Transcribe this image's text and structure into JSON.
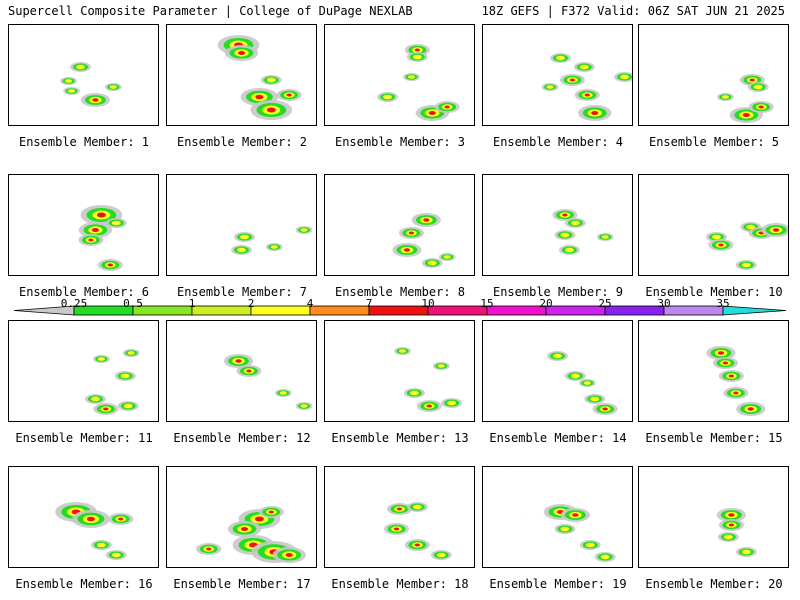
{
  "header": {
    "title": "Supercell Composite Parameter | College of DuPage NEXLAB",
    "run_info": "18Z GEFS | F372 Valid: 06Z SAT JUN 21 2025"
  },
  "colorbar": {
    "ticks": [
      "0.25",
      "0.5",
      "1",
      "2",
      "4",
      "7",
      "10",
      "15",
      "20",
      "25",
      "30",
      "35"
    ],
    "colors": [
      "#c8c8c8",
      "#22dd22",
      "#88e622",
      "#ccee22",
      "#ffff22",
      "#ff8c1a",
      "#ee1111",
      "#ee1177",
      "#ee11cc",
      "#cc22ee",
      "#8822ee",
      "#bb88ee",
      "#22dddd"
    ]
  },
  "members": [
    {
      "label": "Ensemble Member: 1",
      "blobs": [
        [
          0.48,
          0.42,
          0.05
        ],
        [
          0.4,
          0.56,
          0.04
        ],
        [
          0.42,
          0.66,
          0.04
        ],
        [
          0.58,
          0.75,
          0.07
        ],
        [
          0.7,
          0.62,
          0.04
        ]
      ]
    },
    {
      "label": "Ensemble Member: 2",
      "blobs": [
        [
          0.48,
          0.2,
          0.1
        ],
        [
          0.5,
          0.28,
          0.08
        ],
        [
          0.7,
          0.55,
          0.05
        ],
        [
          0.62,
          0.72,
          0.09
        ],
        [
          0.7,
          0.85,
          0.1
        ],
        [
          0.82,
          0.7,
          0.06
        ]
      ]
    },
    {
      "label": "Ensemble Member: 3",
      "blobs": [
        [
          0.62,
          0.25,
          0.06
        ],
        [
          0.62,
          0.32,
          0.05
        ],
        [
          0.58,
          0.52,
          0.04
        ],
        [
          0.42,
          0.72,
          0.05
        ],
        [
          0.72,
          0.88,
          0.08
        ],
        [
          0.82,
          0.82,
          0.06
        ]
      ]
    },
    {
      "label": "Ensemble Member: 4",
      "blobs": [
        [
          0.52,
          0.33,
          0.05
        ],
        [
          0.68,
          0.42,
          0.05
        ],
        [
          0.6,
          0.55,
          0.06
        ],
        [
          0.45,
          0.62,
          0.04
        ],
        [
          0.7,
          0.7,
          0.06
        ],
        [
          0.75,
          0.88,
          0.08
        ],
        [
          0.95,
          0.52,
          0.05
        ]
      ]
    },
    {
      "label": "Ensemble Member: 5",
      "blobs": [
        [
          0.76,
          0.55,
          0.06
        ],
        [
          0.8,
          0.62,
          0.05
        ],
        [
          0.58,
          0.72,
          0.04
        ],
        [
          0.72,
          0.9,
          0.08
        ],
        [
          0.82,
          0.82,
          0.06
        ]
      ]
    },
    {
      "label": "Ensemble Member: 6",
      "blobs": [
        [
          0.62,
          0.4,
          0.1
        ],
        [
          0.58,
          0.55,
          0.08
        ],
        [
          0.55,
          0.65,
          0.06
        ],
        [
          0.72,
          0.48,
          0.05
        ],
        [
          0.68,
          0.9,
          0.06
        ]
      ]
    },
    {
      "label": "Ensemble Member: 7",
      "blobs": [
        [
          0.52,
          0.62,
          0.05
        ],
        [
          0.5,
          0.75,
          0.05
        ],
        [
          0.72,
          0.72,
          0.04
        ],
        [
          0.92,
          0.55,
          0.04
        ]
      ]
    },
    {
      "label": "Ensemble Member: 8",
      "blobs": [
        [
          0.68,
          0.45,
          0.07
        ],
        [
          0.58,
          0.58,
          0.06
        ],
        [
          0.55,
          0.75,
          0.07
        ],
        [
          0.72,
          0.88,
          0.05
        ],
        [
          0.82,
          0.82,
          0.04
        ]
      ]
    },
    {
      "label": "Ensemble Member: 9",
      "blobs": [
        [
          0.55,
          0.4,
          0.06
        ],
        [
          0.62,
          0.48,
          0.05
        ],
        [
          0.55,
          0.6,
          0.05
        ],
        [
          0.58,
          0.75,
          0.05
        ],
        [
          0.82,
          0.62,
          0.04
        ]
      ]
    },
    {
      "label": "Ensemble Member: 10",
      "blobs": [
        [
          0.52,
          0.62,
          0.05
        ],
        [
          0.55,
          0.7,
          0.06
        ],
        [
          0.75,
          0.52,
          0.05
        ],
        [
          0.82,
          0.58,
          0.06
        ],
        [
          0.92,
          0.55,
          0.07
        ],
        [
          0.72,
          0.9,
          0.05
        ]
      ]
    },
    {
      "label": "Ensemble Member: 11",
      "blobs": [
        [
          0.62,
          0.38,
          0.04
        ],
        [
          0.82,
          0.32,
          0.04
        ],
        [
          0.78,
          0.55,
          0.05
        ],
        [
          0.58,
          0.78,
          0.05
        ],
        [
          0.65,
          0.88,
          0.06
        ],
        [
          0.8,
          0.85,
          0.05
        ]
      ]
    },
    {
      "label": "Ensemble Member: 12",
      "blobs": [
        [
          0.48,
          0.4,
          0.07
        ],
        [
          0.55,
          0.5,
          0.06
        ],
        [
          0.78,
          0.72,
          0.04
        ],
        [
          0.92,
          0.85,
          0.04
        ]
      ]
    },
    {
      "label": "Ensemble Member: 13",
      "blobs": [
        [
          0.52,
          0.3,
          0.04
        ],
        [
          0.78,
          0.45,
          0.04
        ],
        [
          0.6,
          0.72,
          0.05
        ],
        [
          0.7,
          0.85,
          0.06
        ],
        [
          0.85,
          0.82,
          0.05
        ]
      ]
    },
    {
      "label": "Ensemble Member: 14",
      "blobs": [
        [
          0.5,
          0.35,
          0.05
        ],
        [
          0.62,
          0.55,
          0.05
        ],
        [
          0.7,
          0.62,
          0.04
        ],
        [
          0.75,
          0.78,
          0.05
        ],
        [
          0.82,
          0.88,
          0.06
        ]
      ]
    },
    {
      "label": "Ensemble Member: 15",
      "blobs": [
        [
          0.55,
          0.32,
          0.07
        ],
        [
          0.58,
          0.42,
          0.06
        ],
        [
          0.62,
          0.55,
          0.06
        ],
        [
          0.65,
          0.72,
          0.06
        ],
        [
          0.75,
          0.88,
          0.07
        ]
      ]
    },
    {
      "label": "Ensemble Member: 16",
      "blobs": [
        [
          0.45,
          0.45,
          0.1
        ],
        [
          0.55,
          0.52,
          0.09
        ],
        [
          0.75,
          0.52,
          0.06
        ],
        [
          0.62,
          0.78,
          0.05
        ],
        [
          0.72,
          0.88,
          0.05
        ]
      ]
    },
    {
      "label": "Ensemble Member: 17",
      "blobs": [
        [
          0.62,
          0.52,
          0.1
        ],
        [
          0.7,
          0.45,
          0.06
        ],
        [
          0.52,
          0.62,
          0.08
        ],
        [
          0.58,
          0.78,
          0.1
        ],
        [
          0.72,
          0.85,
          0.11
        ],
        [
          0.82,
          0.88,
          0.08
        ],
        [
          0.28,
          0.82,
          0.06
        ]
      ]
    },
    {
      "label": "Ensemble Member: 18",
      "blobs": [
        [
          0.5,
          0.42,
          0.06
        ],
        [
          0.62,
          0.4,
          0.05
        ],
        [
          0.48,
          0.62,
          0.06
        ],
        [
          0.62,
          0.78,
          0.06
        ],
        [
          0.78,
          0.88,
          0.05
        ]
      ]
    },
    {
      "label": "Ensemble Member: 19",
      "blobs": [
        [
          0.52,
          0.45,
          0.08
        ],
        [
          0.62,
          0.48,
          0.07
        ],
        [
          0.55,
          0.62,
          0.05
        ],
        [
          0.72,
          0.78,
          0.05
        ],
        [
          0.82,
          0.9,
          0.05
        ]
      ]
    },
    {
      "label": "Ensemble Member: 20",
      "blobs": [
        [
          0.62,
          0.48,
          0.07
        ],
        [
          0.62,
          0.58,
          0.06
        ],
        [
          0.6,
          0.7,
          0.05
        ],
        [
          0.72,
          0.85,
          0.05
        ]
      ]
    }
  ]
}
